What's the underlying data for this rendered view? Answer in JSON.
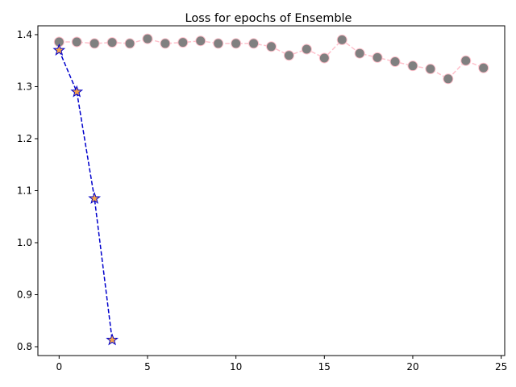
{
  "chart_data": {
    "type": "line",
    "title": "Loss for epochs of Ensemble",
    "xlabel": "",
    "ylabel": "",
    "xlim": [
      -1.2,
      25.2
    ],
    "ylim": [
      0.783,
      1.417
    ],
    "xticks": [
      0,
      5,
      10,
      15,
      20,
      25
    ],
    "yticks": [
      0.8,
      0.9,
      1.0,
      1.1,
      1.2,
      1.3,
      1.4
    ],
    "ytick_labels": [
      "0.8",
      "0.9",
      "1.0",
      "1.1",
      "1.2",
      "1.3",
      "1.4"
    ],
    "grid": false,
    "legend": "none",
    "series": [
      {
        "color": "#ffc0cb",
        "marker": "circle",
        "marker_fill": "#808080",
        "linestyle": "dashed",
        "x": [
          0,
          1,
          2,
          3,
          4,
          5,
          6,
          7,
          8,
          9,
          10,
          11,
          12,
          13,
          14,
          15,
          16,
          17,
          18,
          19,
          20,
          21,
          22,
          23,
          24
        ],
        "values": [
          1.386,
          1.386,
          1.383,
          1.385,
          1.383,
          1.392,
          1.383,
          1.385,
          1.388,
          1.383,
          1.383,
          1.383,
          1.377,
          1.36,
          1.372,
          1.355,
          1.39,
          1.364,
          1.356,
          1.348,
          1.34,
          1.334,
          1.315,
          1.35,
          1.336
        ]
      },
      {
        "color": "#0000cc",
        "marker": "star",
        "marker_fill": "#f4a14a",
        "linestyle": "dashed",
        "x": [
          0,
          1,
          2,
          3
        ],
        "values": [
          1.37,
          1.29,
          1.085,
          0.813
        ]
      }
    ]
  }
}
